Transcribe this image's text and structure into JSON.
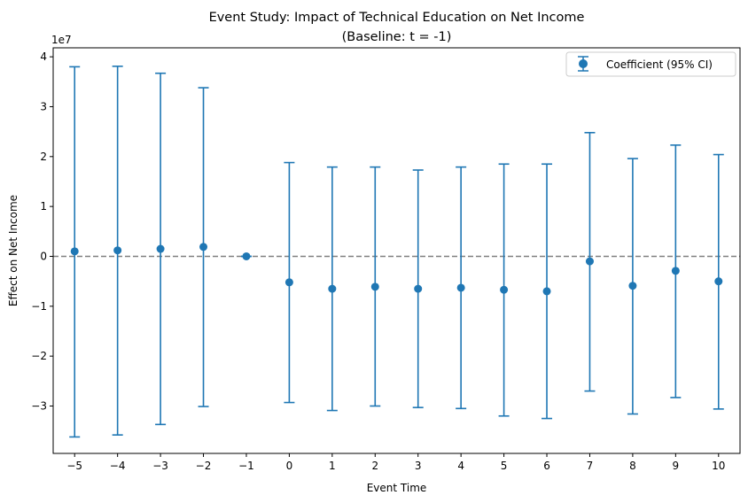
{
  "chart_data": {
    "type": "scatter",
    "title": "Event Study: Impact of Technical Education on Net Income",
    "subtitle": "(Baseline: t = -1)",
    "xlabel": "Event Time",
    "ylabel": "Effect on Net Income",
    "y_offset_label": "1e7",
    "xlim": [
      -5.5,
      10.5
    ],
    "ylim": [
      -39500000,
      41800000
    ],
    "x_ticks": [
      -5,
      -4,
      -3,
      -2,
      -1,
      0,
      1,
      2,
      3,
      4,
      5,
      6,
      7,
      8,
      9,
      10
    ],
    "x_tick_labels": [
      "−5",
      "−4",
      "−3",
      "−2",
      "−1",
      "0",
      "1",
      "2",
      "3",
      "4",
      "5",
      "6",
      "7",
      "8",
      "9",
      "10"
    ],
    "y_ticks": [
      -30000000,
      -20000000,
      -10000000,
      0,
      10000000,
      20000000,
      30000000,
      40000000
    ],
    "y_tick_labels": [
      "−3",
      "−2",
      "−1",
      "0",
      "1",
      "2",
      "3",
      "4"
    ],
    "grid": false,
    "reference_line": {
      "y": 0,
      "style": "dashed",
      "color": "#808080"
    },
    "legend": {
      "position": "top-right",
      "entries": [
        "Coefficient (95% CI)"
      ]
    },
    "series": [
      {
        "name": "Coefficient (95% CI)",
        "color": "#1f77b4",
        "x": [
          -5,
          -4,
          -3,
          -2,
          -1,
          0,
          1,
          2,
          3,
          4,
          5,
          6,
          7,
          8,
          9,
          10
        ],
        "y": [
          1000000,
          1200000,
          1500000,
          1900000,
          0,
          -5200000,
          -6500000,
          -6100000,
          -6500000,
          -6300000,
          -6700000,
          -7000000,
          -1000000,
          -5900000,
          -2900000,
          -5000000
        ],
        "ci_low": [
          -36200000,
          -35800000,
          -33700000,
          -30100000,
          0,
          -29300000,
          -30900000,
          -30000000,
          -30300000,
          -30500000,
          -32000000,
          -32500000,
          -27000000,
          -31600000,
          -28300000,
          -30600000
        ],
        "ci_high": [
          38000000,
          38100000,
          36700000,
          33800000,
          0,
          18800000,
          17900000,
          17900000,
          17300000,
          17900000,
          18500000,
          18500000,
          24800000,
          19600000,
          22300000,
          20400000
        ]
      }
    ]
  }
}
